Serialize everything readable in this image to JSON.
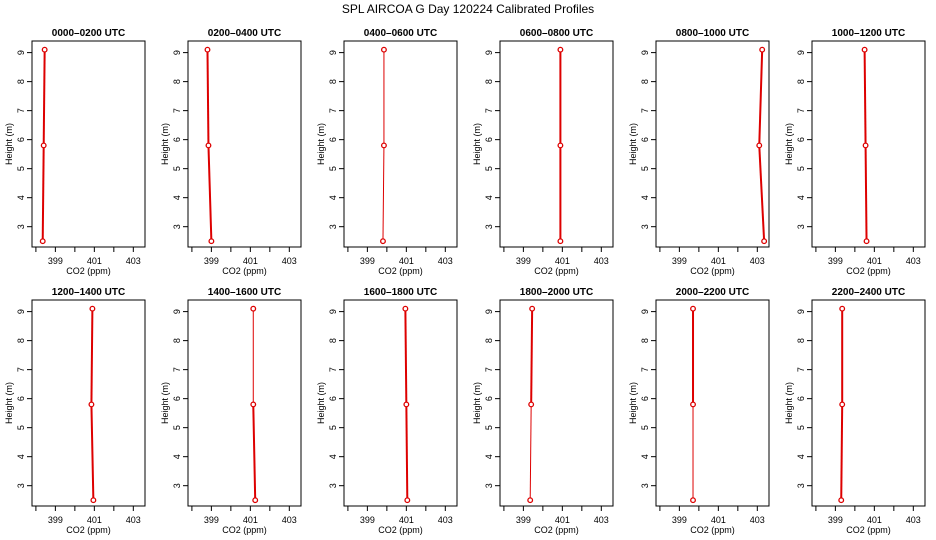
{
  "figure": {
    "title": "SPL AIRCOA G  Day 120224  Calibrated Profiles"
  },
  "style": {
    "series_color": "#dd0000"
  },
  "chart_data": [
    {
      "type": "line",
      "title": "0000–0200 UTC",
      "xlabel": "CO2 (ppm)",
      "ylabel": "Height (m)",
      "xlim": [
        397.8,
        403.6
      ],
      "ylim": [
        2.3,
        9.4
      ],
      "xticks": [
        399,
        401,
        403
      ],
      "xminor": [
        398,
        400,
        402
      ],
      "yticks": [
        3,
        4,
        5,
        6,
        7,
        8,
        9
      ],
      "series": [
        {
          "x": [
            398.45,
            398.4,
            398.35
          ],
          "y": [
            9.1,
            5.8,
            2.5
          ],
          "width": [
            2,
            2
          ]
        }
      ]
    },
    {
      "type": "line",
      "title": "0200–0400 UTC",
      "xlabel": "CO2 (ppm)",
      "ylabel": "Height (m)",
      "xlim": [
        397.8,
        403.6
      ],
      "ylim": [
        2.3,
        9.4
      ],
      "xticks": [
        399,
        401,
        403
      ],
      "xminor": [
        398,
        400,
        402
      ],
      "yticks": [
        3,
        4,
        5,
        6,
        7,
        8,
        9
      ],
      "series": [
        {
          "x": [
            398.8,
            398.85,
            399.0
          ],
          "y": [
            9.1,
            5.8,
            2.5
          ],
          "width": [
            2,
            2
          ]
        }
      ]
    },
    {
      "type": "line",
      "title": "0400–0600 UTC",
      "xlabel": "CO2 (ppm)",
      "ylabel": "Height (m)",
      "xlim": [
        397.8,
        403.6
      ],
      "ylim": [
        2.3,
        9.4
      ],
      "xticks": [
        399,
        401,
        403
      ],
      "xminor": [
        398,
        400,
        402
      ],
      "yticks": [
        3,
        4,
        5,
        6,
        7,
        8,
        9
      ],
      "series": [
        {
          "x": [
            399.85,
            399.85,
            399.8
          ],
          "y": [
            9.1,
            5.8,
            2.5
          ],
          "width": [
            1,
            1
          ]
        }
      ]
    },
    {
      "type": "line",
      "title": "0600–0800 UTC",
      "xlabel": "CO2 (ppm)",
      "ylabel": "Height (m)",
      "xlim": [
        397.8,
        403.6
      ],
      "ylim": [
        2.3,
        9.4
      ],
      "xticks": [
        399,
        401,
        403
      ],
      "xminor": [
        398,
        400,
        402
      ],
      "yticks": [
        3,
        4,
        5,
        6,
        7,
        8,
        9
      ],
      "series": [
        {
          "x": [
            400.9,
            400.9,
            400.9
          ],
          "y": [
            9.1,
            5.8,
            2.5
          ],
          "width": [
            2,
            2
          ]
        }
      ]
    },
    {
      "type": "line",
      "title": "0800–1000 UTC",
      "xlabel": "CO2 (ppm)",
      "ylabel": "Height (m)",
      "xlim": [
        397.8,
        403.6
      ],
      "ylim": [
        2.3,
        9.4
      ],
      "xticks": [
        399,
        401,
        403
      ],
      "xminor": [
        398,
        400,
        402
      ],
      "yticks": [
        3,
        4,
        5,
        6,
        7,
        8,
        9
      ],
      "series": [
        {
          "x": [
            403.25,
            403.1,
            403.35
          ],
          "y": [
            9.1,
            5.8,
            2.5
          ],
          "width": [
            2,
            2
          ]
        }
      ]
    },
    {
      "type": "line",
      "title": "1000–1200 UTC",
      "xlabel": "CO2 (ppm)",
      "ylabel": "Height (m)",
      "xlim": [
        397.8,
        403.6
      ],
      "ylim": [
        2.3,
        9.4
      ],
      "xticks": [
        399,
        401,
        403
      ],
      "xminor": [
        398,
        400,
        402
      ],
      "yticks": [
        3,
        4,
        5,
        6,
        7,
        8,
        9
      ],
      "series": [
        {
          "x": [
            400.5,
            400.55,
            400.6
          ],
          "y": [
            9.1,
            5.8,
            2.5
          ],
          "width": [
            2,
            2
          ]
        }
      ]
    },
    {
      "type": "line",
      "title": "1200–1400 UTC",
      "xlabel": "CO2 (ppm)",
      "ylabel": "Height (m)",
      "xlim": [
        397.8,
        403.6
      ],
      "ylim": [
        2.3,
        9.4
      ],
      "xticks": [
        399,
        401,
        403
      ],
      "xminor": [
        398,
        400,
        402
      ],
      "yticks": [
        3,
        4,
        5,
        6,
        7,
        8,
        9
      ],
      "series": [
        {
          "x": [
            400.9,
            400.85,
            400.95
          ],
          "y": [
            9.1,
            5.8,
            2.5
          ],
          "width": [
            2,
            2
          ]
        }
      ]
    },
    {
      "type": "line",
      "title": "1400–1600 UTC",
      "xlabel": "CO2 (ppm)",
      "ylabel": "Height (m)",
      "xlim": [
        397.8,
        403.6
      ],
      "ylim": [
        2.3,
        9.4
      ],
      "xticks": [
        399,
        401,
        403
      ],
      "xminor": [
        398,
        400,
        402
      ],
      "yticks": [
        3,
        4,
        5,
        6,
        7,
        8,
        9
      ],
      "series": [
        {
          "x": [
            401.15,
            401.15,
            401.25
          ],
          "y": [
            9.1,
            5.8,
            2.5
          ],
          "width": [
            1,
            2
          ]
        }
      ]
    },
    {
      "type": "line",
      "title": "1600–1800 UTC",
      "xlabel": "CO2 (ppm)",
      "ylabel": "Height (m)",
      "xlim": [
        397.8,
        403.6
      ],
      "ylim": [
        2.3,
        9.4
      ],
      "xticks": [
        399,
        401,
        403
      ],
      "xminor": [
        398,
        400,
        402
      ],
      "yticks": [
        3,
        4,
        5,
        6,
        7,
        8,
        9
      ],
      "series": [
        {
          "x": [
            400.95,
            401.0,
            401.05
          ],
          "y": [
            9.1,
            5.8,
            2.5
          ],
          "width": [
            2,
            2
          ]
        }
      ]
    },
    {
      "type": "line",
      "title": "1800–2000 UTC",
      "xlabel": "CO2 (ppm)",
      "ylabel": "Height (m)",
      "xlim": [
        397.8,
        403.6
      ],
      "ylim": [
        2.3,
        9.4
      ],
      "xticks": [
        399,
        401,
        403
      ],
      "xminor": [
        398,
        400,
        402
      ],
      "yticks": [
        3,
        4,
        5,
        6,
        7,
        8,
        9
      ],
      "series": [
        {
          "x": [
            399.45,
            399.4,
            399.35
          ],
          "y": [
            9.1,
            5.8,
            2.5
          ],
          "width": [
            2,
            1
          ]
        }
      ]
    },
    {
      "type": "line",
      "title": "2000–2200 UTC",
      "xlabel": "CO2 (ppm)",
      "ylabel": "Height (m)",
      "xlim": [
        397.8,
        403.6
      ],
      "ylim": [
        2.3,
        9.4
      ],
      "xticks": [
        399,
        401,
        403
      ],
      "xminor": [
        398,
        400,
        402
      ],
      "yticks": [
        3,
        4,
        5,
        6,
        7,
        8,
        9
      ],
      "series": [
        {
          "x": [
            399.7,
            399.7,
            399.7
          ],
          "y": [
            9.1,
            5.8,
            2.5
          ],
          "width": [
            2,
            1
          ]
        }
      ]
    },
    {
      "type": "line",
      "title": "2200–2400 UTC",
      "xlabel": "CO2 (ppm)",
      "ylabel": "Height (m)",
      "xlim": [
        397.8,
        403.6
      ],
      "ylim": [
        2.3,
        9.4
      ],
      "xticks": [
        399,
        401,
        403
      ],
      "xminor": [
        398,
        400,
        402
      ],
      "yticks": [
        3,
        4,
        5,
        6,
        7,
        8,
        9
      ],
      "series": [
        {
          "x": [
            399.35,
            399.35,
            399.3
          ],
          "y": [
            9.1,
            5.8,
            2.5
          ],
          "width": [
            2,
            2
          ]
        }
      ]
    }
  ]
}
